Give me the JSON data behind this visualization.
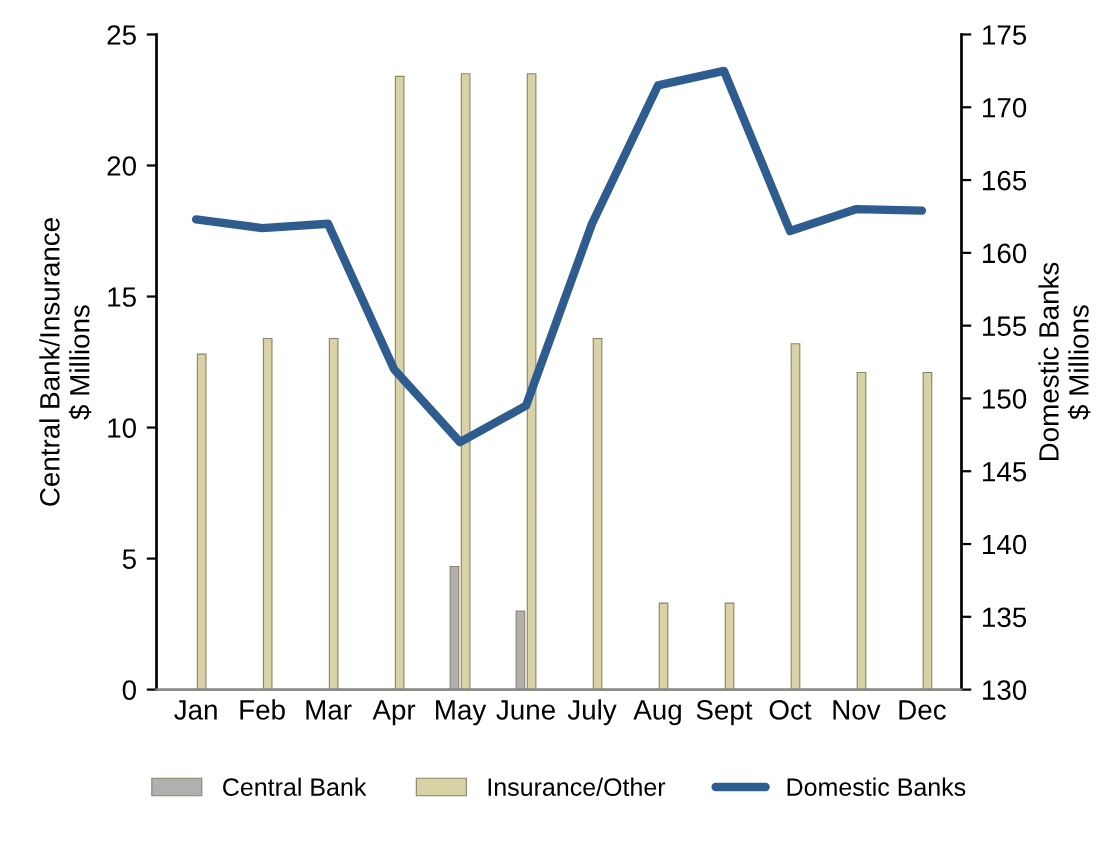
{
  "chart_data": {
    "type": "bar",
    "ylabel": "Central Bank/Insurance\n$ Millions",
    "y2label": "Domestic Banks\n$ Millions",
    "categories": [
      "Jan",
      "Feb",
      "Mar",
      "Apr",
      "May",
      "June",
      "July",
      "Aug",
      "Sept",
      "Oct",
      "Nov",
      "Dec"
    ],
    "series": [
      {
        "name": "Central Bank",
        "color": "#b0b0b0",
        "values": [
          null,
          null,
          null,
          null,
          4.7,
          3.0,
          null,
          null,
          null,
          null,
          null,
          null
        ]
      },
      {
        "name": "Insurance/Other",
        "color": "#d9d2a6",
        "values": [
          12.8,
          13.4,
          13.4,
          23.4,
          23.5,
          23.5,
          13.4,
          3.3,
          3.3,
          13.2,
          12.1,
          12.1
        ]
      },
      {
        "name": "Domestic Banks",
        "type": "line",
        "axis": "y2",
        "color": "#2f5c8f",
        "values": [
          162.3,
          161.7,
          162.0,
          152.0,
          147.0,
          149.5,
          162.0,
          171.5,
          172.5,
          161.5,
          163.0,
          162.9
        ]
      }
    ],
    "ylim": [
      0,
      25
    ],
    "yticks": [
      0,
      5,
      10,
      15,
      20,
      25
    ],
    "y2lim": [
      130,
      175
    ],
    "y2ticks": [
      130,
      135,
      140,
      145,
      150,
      155,
      160,
      165,
      170,
      175
    ],
    "legend": "bottom",
    "grid": false
  }
}
